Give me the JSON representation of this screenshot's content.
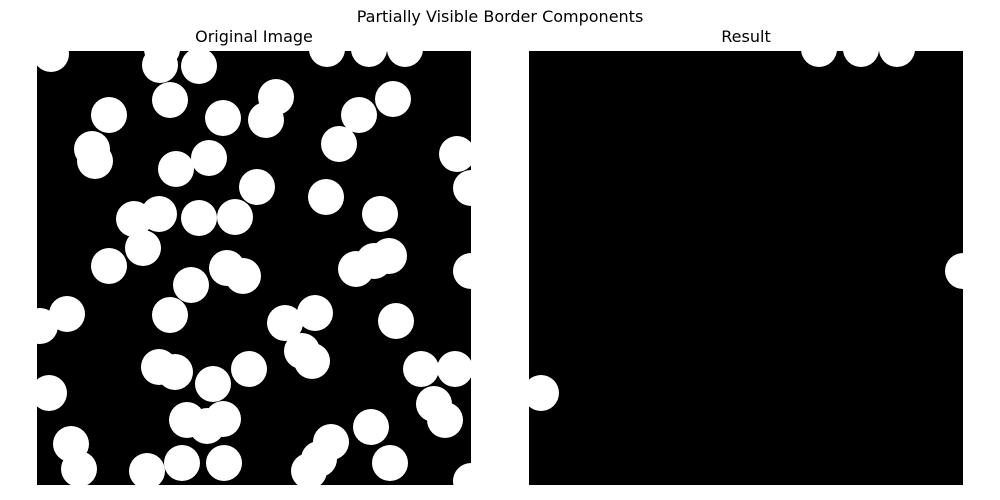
{
  "figure": {
    "title": "Partially Visible Border Components"
  },
  "panels": [
    {
      "title": "Original Image"
    },
    {
      "title": "Result"
    }
  ],
  "colors": {
    "background": "#000000",
    "foreground": "#ffffff"
  }
}
